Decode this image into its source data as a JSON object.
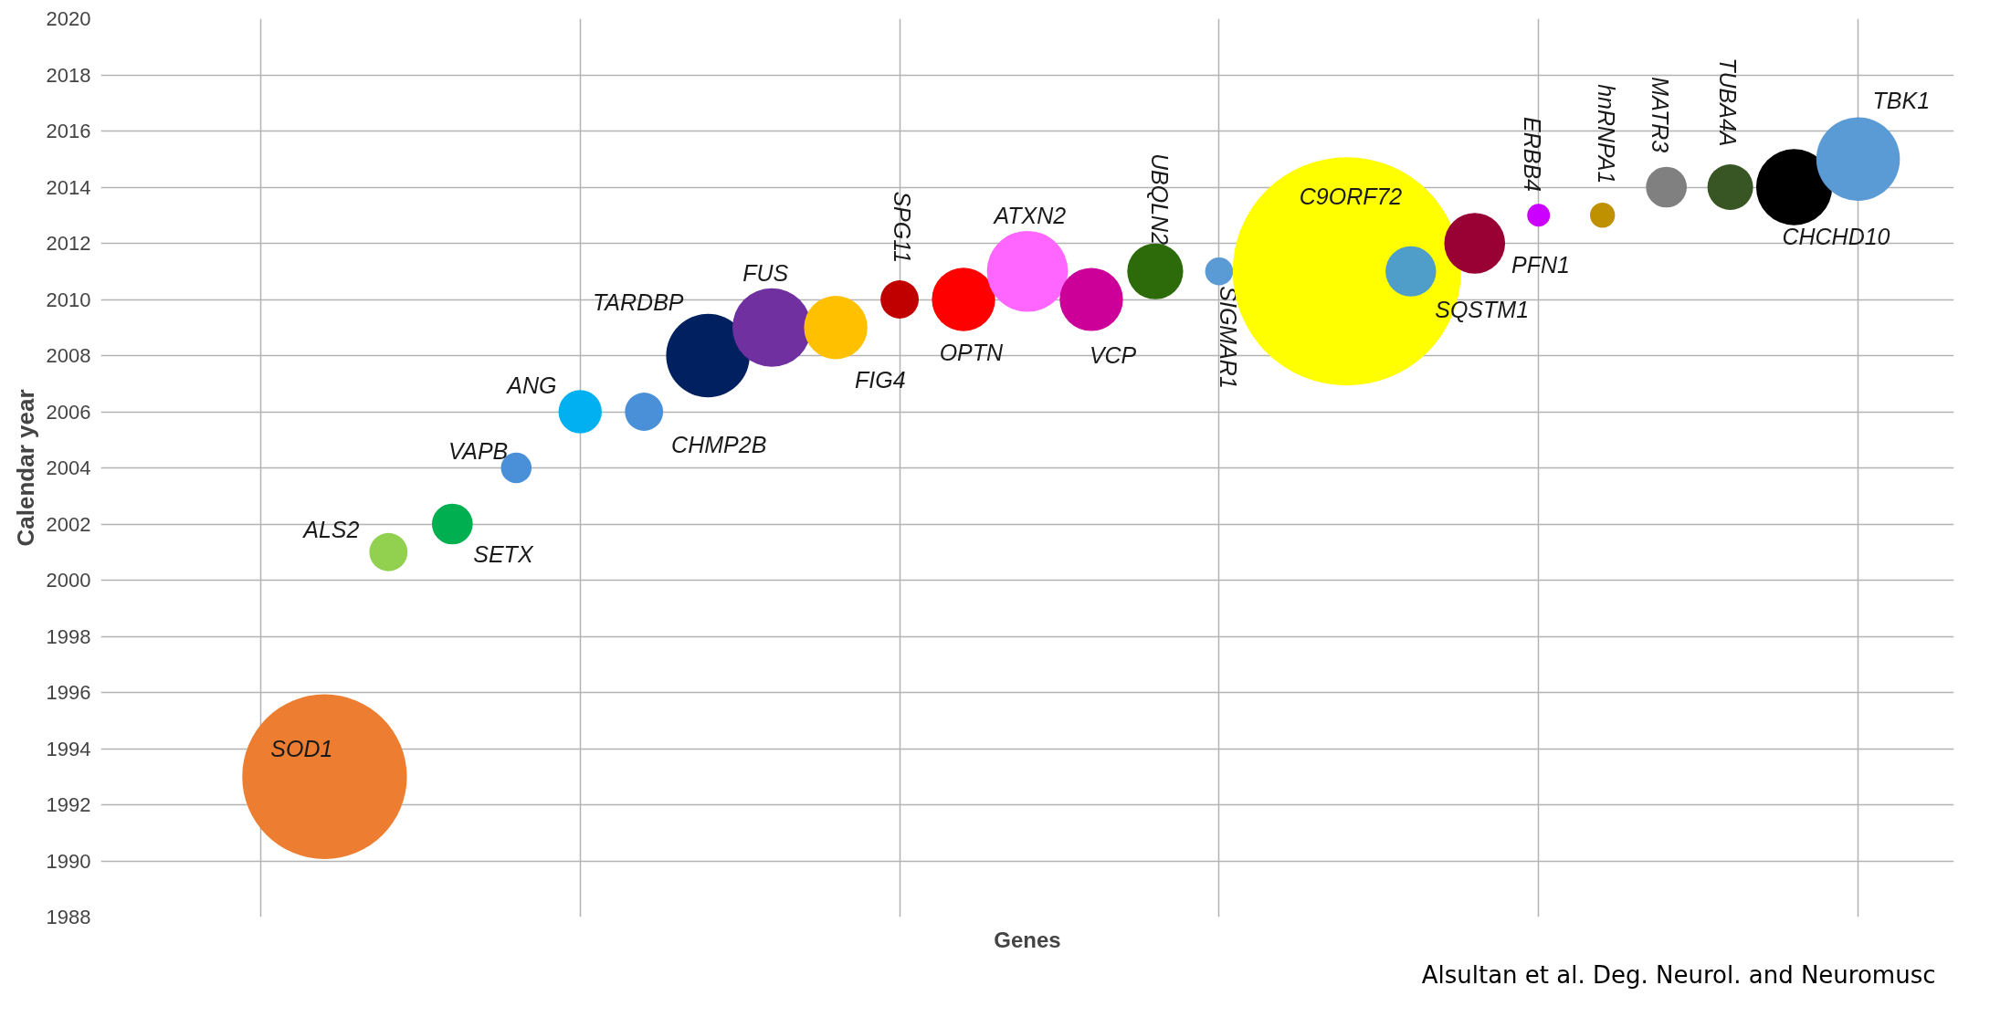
{
  "chart_data": {
    "type": "bubble",
    "xlabel": "Genes",
    "ylabel": "Calendar year",
    "categories": [
      null,
      null,
      null,
      null,
      null,
      null,
      null,
      null,
      null,
      null,
      null,
      null,
      null,
      null,
      null,
      null,
      null,
      null,
      null,
      null,
      null,
      null,
      null,
      null,
      null,
      null,
      null,
      null,
      null
    ],
    "ylim": [
      1988,
      2020
    ],
    "yticks": [
      1988,
      1990,
      1992,
      1994,
      1996,
      1998,
      2000,
      2002,
      2004,
      2006,
      2008,
      2010,
      2012,
      2014,
      2016,
      2018,
      2020
    ],
    "grid": true,
    "annotations": [
      "Alsultan et al. Deg. Neurol. and Neuromusc"
    ],
    "series": [
      {
        "name": "SOD1",
        "color": "#ed7d31",
        "values": [
          null,
          null,
          null,
          1993,
          null,
          null,
          null,
          null,
          null,
          null,
          null,
          null,
          null,
          null,
          null,
          null,
          null,
          null,
          null,
          null,
          null,
          null,
          null,
          null,
          null,
          null,
          null,
          null,
          null
        ],
        "sizes": [
          null,
          null,
          null,
          0.52,
          null,
          null,
          null,
          null,
          null,
          null,
          null,
          null,
          null,
          null,
          null,
          null,
          null,
          null,
          null,
          null,
          null,
          null,
          null,
          null,
          null,
          null,
          null,
          null,
          null
        ]
      },
      {
        "name": "ALS2",
        "color": "#92d050",
        "values": [
          null,
          null,
          null,
          null,
          2001,
          null,
          null,
          null,
          null,
          null,
          null,
          null,
          null,
          null,
          null,
          null,
          null,
          null,
          null,
          null,
          null,
          null,
          null,
          null,
          null,
          null,
          null,
          null,
          null
        ],
        "sizes": [
          null,
          null,
          null,
          null,
          0.028,
          null,
          null,
          null,
          null,
          null,
          null,
          null,
          null,
          null,
          null,
          null,
          null,
          null,
          null,
          null,
          null,
          null,
          null,
          null,
          null,
          null,
          null,
          null,
          null
        ]
      },
      {
        "name": "SETX",
        "color": "#00b050",
        "values": [
          null,
          null,
          null,
          null,
          null,
          2002,
          null,
          null,
          null,
          null,
          null,
          null,
          null,
          null,
          null,
          null,
          null,
          null,
          null,
          null,
          null,
          null,
          null,
          null,
          null,
          null,
          null,
          null,
          null
        ],
        "sizes": [
          null,
          null,
          null,
          null,
          null,
          0.032,
          null,
          null,
          null,
          null,
          null,
          null,
          null,
          null,
          null,
          null,
          null,
          null,
          null,
          null,
          null,
          null,
          null,
          null,
          null,
          null,
          null,
          null,
          null
        ]
      },
      {
        "name": "VAPB",
        "color": "#4a90d9",
        "values": [
          null,
          null,
          null,
          null,
          null,
          null,
          2004,
          null,
          null,
          null,
          null,
          null,
          null,
          null,
          null,
          null,
          null,
          null,
          null,
          null,
          null,
          null,
          null,
          null,
          null,
          null,
          null,
          null,
          null
        ],
        "sizes": [
          null,
          null,
          null,
          null,
          null,
          null,
          0.018,
          null,
          null,
          null,
          null,
          null,
          null,
          null,
          null,
          null,
          null,
          null,
          null,
          null,
          null,
          null,
          null,
          null,
          null,
          null,
          null,
          null,
          null
        ]
      },
      {
        "name": "ANG",
        "color": "#00b0f0",
        "values": [
          null,
          null,
          null,
          null,
          null,
          null,
          null,
          2006,
          null,
          null,
          null,
          null,
          null,
          null,
          null,
          null,
          null,
          null,
          null,
          null,
          null,
          null,
          null,
          null,
          null,
          null,
          null,
          null,
          null
        ],
        "sizes": [
          null,
          null,
          null,
          null,
          null,
          null,
          null,
          0.036,
          null,
          null,
          null,
          null,
          null,
          null,
          null,
          null,
          null,
          null,
          null,
          null,
          null,
          null,
          null,
          null,
          null,
          null,
          null,
          null,
          null
        ]
      },
      {
        "name": "CHMP2B",
        "color": "#4a90d9",
        "values": [
          null,
          null,
          null,
          null,
          null,
          null,
          null,
          null,
          2006,
          null,
          null,
          null,
          null,
          null,
          null,
          null,
          null,
          null,
          null,
          null,
          null,
          null,
          null,
          null,
          null,
          null,
          null,
          null,
          null
        ],
        "sizes": [
          null,
          null,
          null,
          null,
          null,
          null,
          null,
          null,
          0.028,
          null,
          null,
          null,
          null,
          null,
          null,
          null,
          null,
          null,
          null,
          null,
          null,
          null,
          null,
          null,
          null,
          null,
          null,
          null,
          null
        ]
      },
      {
        "name": "TARDBP",
        "color": "#002060",
        "values": [
          null,
          null,
          null,
          null,
          null,
          null,
          null,
          null,
          null,
          2008,
          null,
          null,
          null,
          null,
          null,
          null,
          null,
          null,
          null,
          null,
          null,
          null,
          null,
          null,
          null,
          null,
          null,
          null,
          null
        ],
        "sizes": [
          null,
          null,
          null,
          null,
          null,
          null,
          null,
          null,
          null,
          0.134,
          null,
          null,
          null,
          null,
          null,
          null,
          null,
          null,
          null,
          null,
          null,
          null,
          null,
          null,
          null,
          null,
          null,
          null,
          null
        ]
      },
      {
        "name": "FUS",
        "color": "#7030a0",
        "values": [
          null,
          null,
          null,
          null,
          null,
          null,
          null,
          null,
          null,
          null,
          2009,
          null,
          null,
          null,
          null,
          null,
          null,
          null,
          null,
          null,
          null,
          null,
          null,
          null,
          null,
          null,
          null,
          null,
          null
        ],
        "sizes": [
          null,
          null,
          null,
          null,
          null,
          null,
          null,
          null,
          null,
          null,
          0.119,
          null,
          null,
          null,
          null,
          null,
          null,
          null,
          null,
          null,
          null,
          null,
          null,
          null,
          null,
          null,
          null,
          null,
          null
        ]
      },
      {
        "name": "FIG4",
        "color": "#ffc000",
        "values": [
          null,
          null,
          null,
          null,
          null,
          null,
          null,
          null,
          null,
          null,
          null,
          2009,
          null,
          null,
          null,
          null,
          null,
          null,
          null,
          null,
          null,
          null,
          null,
          null,
          null,
          null,
          null,
          null,
          null
        ],
        "sizes": [
          null,
          null,
          null,
          null,
          null,
          null,
          null,
          null,
          null,
          null,
          null,
          0.077,
          null,
          null,
          null,
          null,
          null,
          null,
          null,
          null,
          null,
          null,
          null,
          null,
          null,
          null,
          null,
          null,
          null
        ]
      },
      {
        "name": "SPG11",
        "color": "#c00000",
        "values": [
          null,
          null,
          null,
          null,
          null,
          null,
          null,
          null,
          null,
          null,
          null,
          null,
          2010,
          null,
          null,
          null,
          null,
          null,
          null,
          null,
          null,
          null,
          null,
          null,
          null,
          null,
          null,
          null,
          null
        ],
        "sizes": [
          null,
          null,
          null,
          null,
          null,
          null,
          null,
          null,
          null,
          null,
          null,
          null,
          0.028,
          null,
          null,
          null,
          null,
          null,
          null,
          null,
          null,
          null,
          null,
          null,
          null,
          null,
          null,
          null,
          null
        ]
      },
      {
        "name": "OPTN",
        "color": "#ff0000",
        "values": [
          null,
          null,
          null,
          null,
          null,
          null,
          null,
          null,
          null,
          null,
          null,
          null,
          null,
          2010,
          null,
          null,
          null,
          null,
          null,
          null,
          null,
          null,
          null,
          null,
          null,
          null,
          null,
          null,
          null
        ],
        "sizes": [
          null,
          null,
          null,
          null,
          null,
          null,
          null,
          null,
          null,
          null,
          null,
          null,
          null,
          0.077,
          null,
          null,
          null,
          null,
          null,
          null,
          null,
          null,
          null,
          null,
          null,
          null,
          null,
          null,
          null
        ]
      },
      {
        "name": "ATXN2",
        "color": "#ff66ff",
        "values": [
          null,
          null,
          null,
          null,
          null,
          null,
          null,
          null,
          null,
          null,
          null,
          null,
          null,
          null,
          2011,
          null,
          null,
          null,
          null,
          null,
          null,
          null,
          null,
          null,
          null,
          null,
          null,
          null,
          null
        ],
        "sizes": [
          null,
          null,
          null,
          null,
          null,
          null,
          null,
          null,
          null,
          null,
          null,
          null,
          null,
          null,
          0.126,
          null,
          null,
          null,
          null,
          null,
          null,
          null,
          null,
          null,
          null,
          null,
          null,
          null,
          null
        ]
      },
      {
        "name": "VCP",
        "color": "#cc0099",
        "values": [
          null,
          null,
          null,
          null,
          null,
          null,
          null,
          null,
          null,
          null,
          null,
          null,
          null,
          null,
          null,
          2010,
          null,
          null,
          null,
          null,
          null,
          null,
          null,
          null,
          null,
          null,
          null,
          null,
          null
        ],
        "sizes": [
          null,
          null,
          null,
          null,
          null,
          null,
          null,
          null,
          null,
          null,
          null,
          null,
          null,
          null,
          null,
          0.077,
          null,
          null,
          null,
          null,
          null,
          null,
          null,
          null,
          null,
          null,
          null,
          null,
          null
        ]
      },
      {
        "name": "UBQLN2",
        "color": "#2d6a0a",
        "values": [
          null,
          null,
          null,
          null,
          null,
          null,
          null,
          null,
          null,
          null,
          null,
          null,
          null,
          null,
          null,
          null,
          2011,
          null,
          null,
          null,
          null,
          null,
          null,
          null,
          null,
          null,
          null,
          null,
          null
        ],
        "sizes": [
          null,
          null,
          null,
          null,
          null,
          null,
          null,
          null,
          null,
          null,
          null,
          null,
          null,
          null,
          null,
          null,
          0.06,
          null,
          null,
          null,
          null,
          null,
          null,
          null,
          null,
          null,
          null,
          null,
          null
        ]
      },
      {
        "name": "SIGMAR1",
        "color": "#5b9bd5",
        "values": [
          null,
          null,
          null,
          null,
          null,
          null,
          null,
          null,
          null,
          null,
          null,
          null,
          null,
          null,
          null,
          null,
          null,
          2011,
          null,
          null,
          null,
          null,
          null,
          null,
          null,
          null,
          null,
          null,
          null
        ],
        "sizes": [
          null,
          null,
          null,
          null,
          null,
          null,
          null,
          null,
          null,
          null,
          null,
          null,
          null,
          null,
          null,
          null,
          null,
          0.015,
          null,
          null,
          null,
          null,
          null,
          null,
          null,
          null,
          null,
          null,
          null
        ]
      },
      {
        "name": "C9ORF72",
        "color": "#ffff00",
        "values": [
          null,
          null,
          null,
          null,
          null,
          null,
          null,
          null,
          null,
          null,
          null,
          null,
          null,
          null,
          null,
          null,
          null,
          null,
          null,
          2011,
          null,
          null,
          null,
          null,
          null,
          null,
          null,
          null,
          null
        ],
        "sizes": [
          null,
          null,
          null,
          null,
          null,
          null,
          null,
          null,
          null,
          null,
          null,
          null,
          null,
          null,
          null,
          null,
          null,
          null,
          null,
          1,
          null,
          null,
          null,
          null,
          null,
          null,
          null,
          null,
          null
        ]
      },
      {
        "name": "SQSTM1",
        "color": "#4f9ec9",
        "values": [
          null,
          null,
          null,
          null,
          null,
          null,
          null,
          null,
          null,
          null,
          null,
          null,
          null,
          null,
          null,
          null,
          null,
          null,
          null,
          null,
          2011,
          null,
          null,
          null,
          null,
          null,
          null,
          null,
          null
        ],
        "sizes": [
          null,
          null,
          null,
          null,
          null,
          null,
          null,
          null,
          null,
          null,
          null,
          null,
          null,
          null,
          null,
          null,
          null,
          null,
          null,
          null,
          0.049,
          null,
          null,
          null,
          null,
          null,
          null,
          null,
          null
        ]
      },
      {
        "name": "PFN1",
        "color": "#990033",
        "values": [
          null,
          null,
          null,
          null,
          null,
          null,
          null,
          null,
          null,
          null,
          null,
          null,
          null,
          null,
          null,
          null,
          null,
          null,
          null,
          null,
          null,
          2012,
          null,
          null,
          null,
          null,
          null,
          null,
          null
        ],
        "sizes": [
          null,
          null,
          null,
          null,
          null,
          null,
          null,
          null,
          null,
          null,
          null,
          null,
          null,
          null,
          null,
          null,
          null,
          null,
          null,
          null,
          null,
          0.071,
          null,
          null,
          null,
          null,
          null,
          null,
          null
        ]
      },
      {
        "name": "ERBB4",
        "color": "#cc00ff",
        "values": [
          null,
          null,
          null,
          null,
          null,
          null,
          null,
          null,
          null,
          null,
          null,
          null,
          null,
          null,
          null,
          null,
          null,
          null,
          null,
          null,
          null,
          null,
          2013,
          null,
          null,
          null,
          null,
          null,
          null
        ],
        "sizes": [
          null,
          null,
          null,
          null,
          null,
          null,
          null,
          null,
          null,
          null,
          null,
          null,
          null,
          null,
          null,
          null,
          null,
          null,
          null,
          null,
          null,
          null,
          0.01,
          null,
          null,
          null,
          null,
          null,
          null
        ]
      },
      {
        "name": "hnRNPA1",
        "color": "#bf9000",
        "values": [
          null,
          null,
          null,
          null,
          null,
          null,
          null,
          null,
          null,
          null,
          null,
          null,
          null,
          null,
          null,
          null,
          null,
          null,
          null,
          null,
          null,
          null,
          null,
          2013,
          null,
          null,
          null,
          null,
          null
        ],
        "sizes": [
          null,
          null,
          null,
          null,
          null,
          null,
          null,
          null,
          null,
          null,
          null,
          null,
          null,
          null,
          null,
          null,
          null,
          null,
          null,
          null,
          null,
          null,
          null,
          0.012,
          null,
          null,
          null,
          null,
          null
        ]
      },
      {
        "name": "MATR3",
        "color": "#808080",
        "values": [
          null,
          null,
          null,
          null,
          null,
          null,
          null,
          null,
          null,
          null,
          null,
          null,
          null,
          null,
          null,
          null,
          null,
          null,
          null,
          null,
          null,
          null,
          null,
          null,
          2014,
          null,
          null,
          null,
          null
        ],
        "sizes": [
          null,
          null,
          null,
          null,
          null,
          null,
          null,
          null,
          null,
          null,
          null,
          null,
          null,
          null,
          null,
          null,
          null,
          null,
          null,
          null,
          null,
          null,
          null,
          null,
          0.032,
          null,
          null,
          null,
          null
        ]
      },
      {
        "name": "TUBA4A",
        "color": "#375623",
        "values": [
          null,
          null,
          null,
          null,
          null,
          null,
          null,
          null,
          null,
          null,
          null,
          null,
          null,
          null,
          null,
          null,
          null,
          null,
          null,
          null,
          null,
          null,
          null,
          null,
          null,
          2014,
          null,
          null,
          null
        ],
        "sizes": [
          null,
          null,
          null,
          null,
          null,
          null,
          null,
          null,
          null,
          null,
          null,
          null,
          null,
          null,
          null,
          null,
          null,
          null,
          null,
          null,
          null,
          null,
          null,
          null,
          null,
          0.04,
          null,
          null,
          null
        ]
      },
      {
        "name": "CHCHD10",
        "color": "#000000",
        "values": [
          null,
          null,
          null,
          null,
          null,
          null,
          null,
          null,
          null,
          null,
          null,
          null,
          null,
          null,
          null,
          null,
          null,
          null,
          null,
          null,
          null,
          null,
          null,
          null,
          null,
          null,
          2014,
          null,
          null
        ],
        "sizes": [
          null,
          null,
          null,
          null,
          null,
          null,
          null,
          null,
          null,
          null,
          null,
          null,
          null,
          null,
          null,
          null,
          null,
          null,
          null,
          null,
          null,
          null,
          null,
          null,
          null,
          null,
          0.111,
          null,
          null
        ]
      },
      {
        "name": "TBK1",
        "color": "#5b9bd5",
        "values": [
          null,
          null,
          null,
          null,
          null,
          null,
          null,
          null,
          null,
          null,
          null,
          null,
          null,
          null,
          null,
          null,
          null,
          null,
          null,
          null,
          null,
          null,
          null,
          null,
          null,
          null,
          null,
          2015,
          null
        ],
        "sizes": [
          null,
          null,
          null,
          null,
          null,
          null,
          null,
          null,
          null,
          null,
          null,
          null,
          null,
          null,
          null,
          null,
          null,
          null,
          null,
          null,
          null,
          null,
          null,
          null,
          null,
          null,
          null,
          0.134,
          null
        ]
      }
    ]
  }
}
